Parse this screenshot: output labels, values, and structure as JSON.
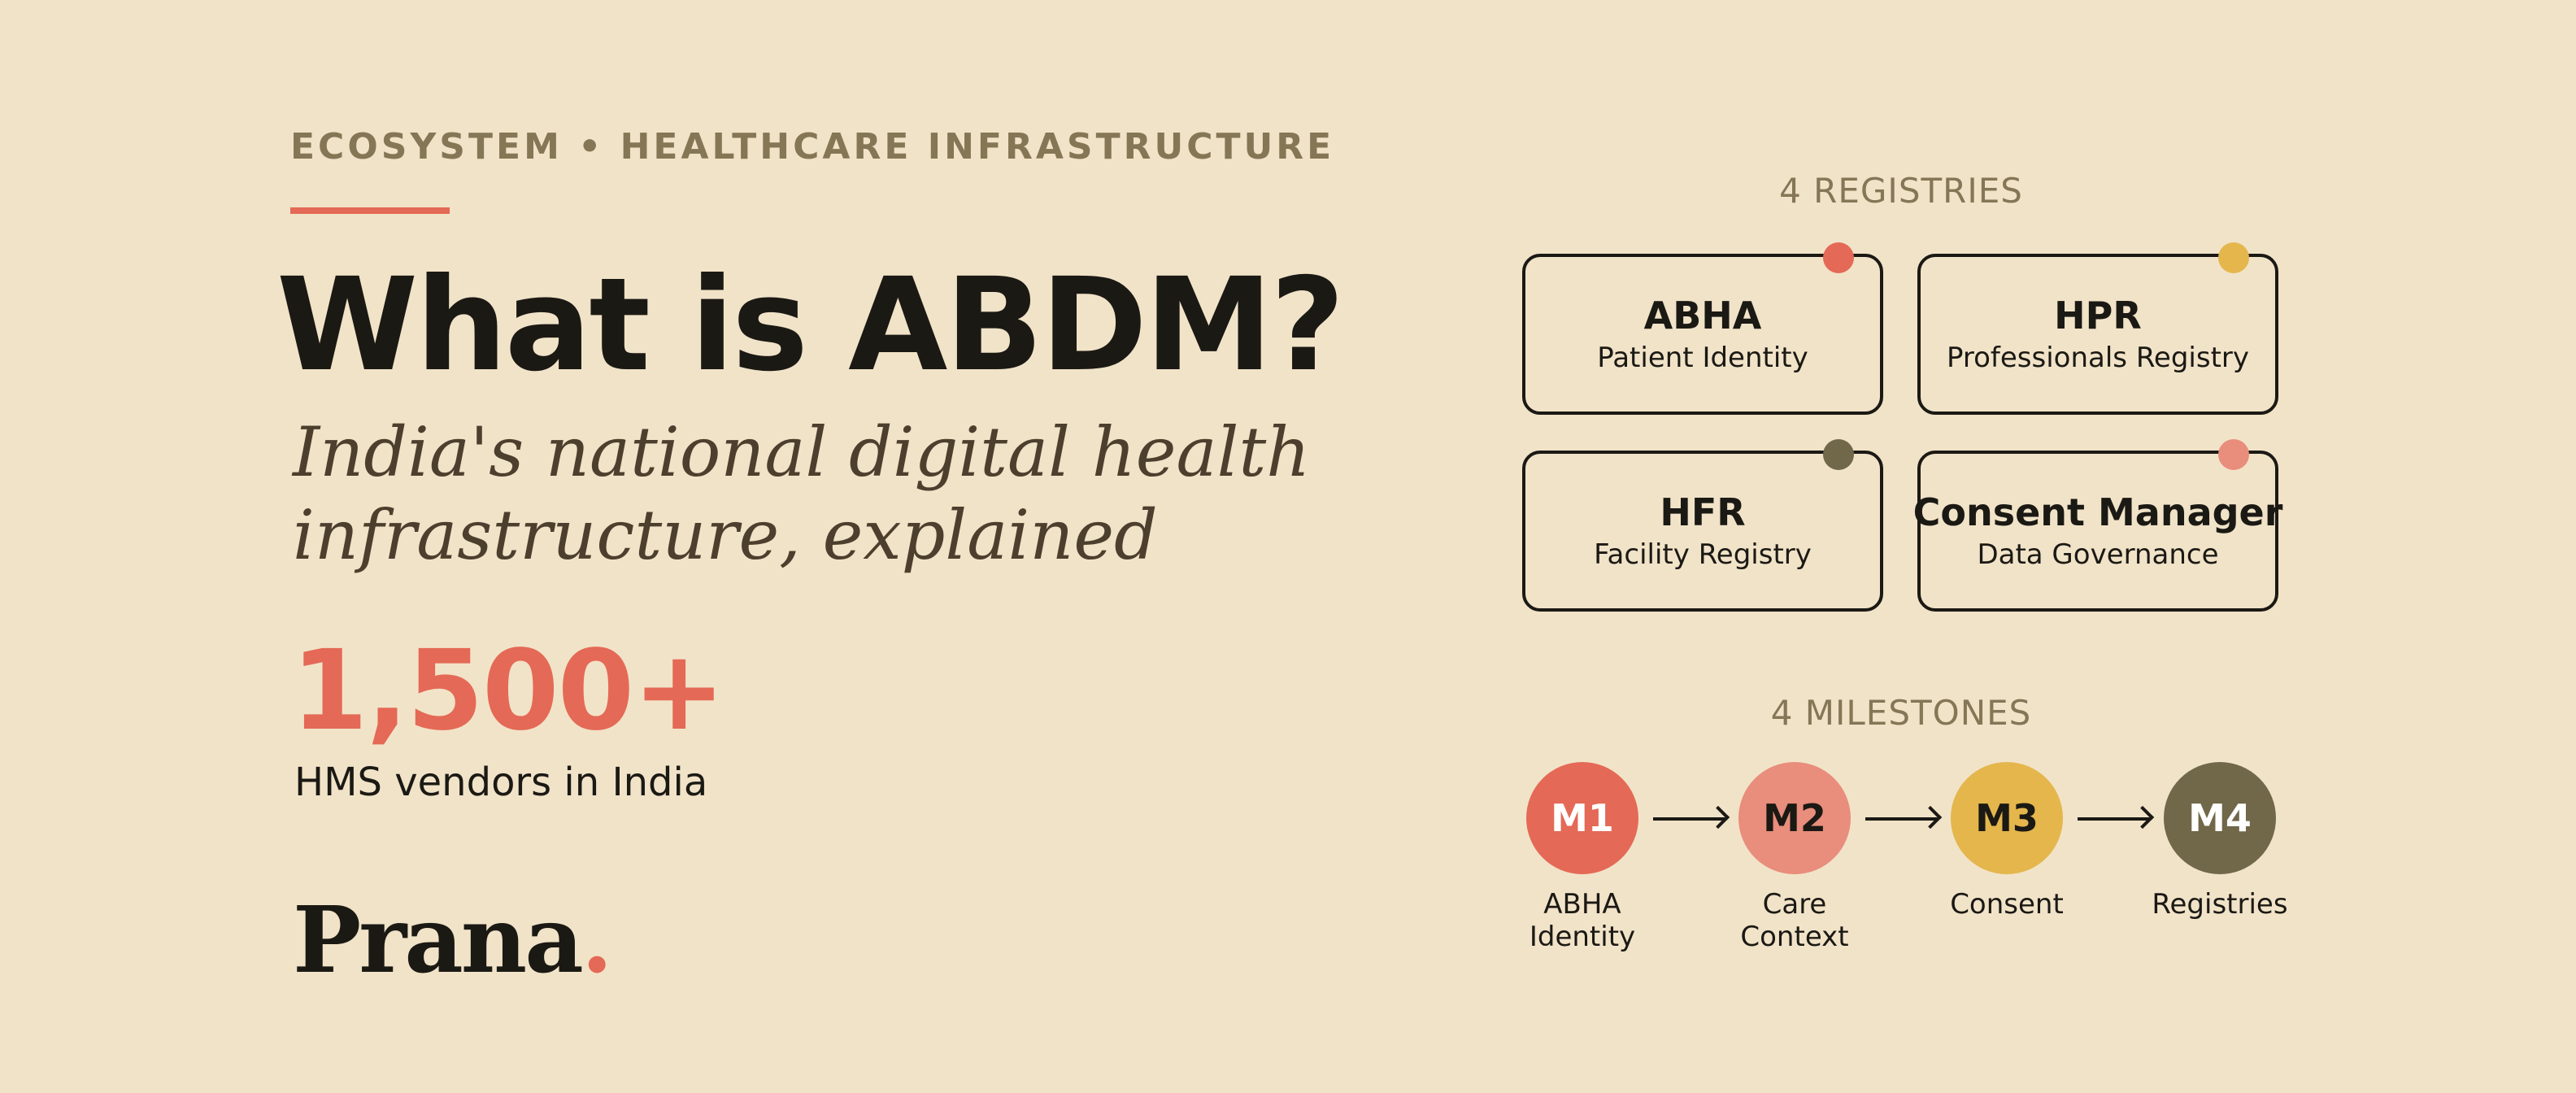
{
  "eyebrow": "ECOSYSTEM • HEALTHCARE INFRASTRUCTURE",
  "title": "What is ABDM?",
  "subtitle": {
    "line1": "India's national digital health",
    "line2": "infrastructure, explained"
  },
  "stat": {
    "value": "1,500+",
    "label": "HMS vendors in India"
  },
  "brand": {
    "name": "Prana",
    "dot": "."
  },
  "registries": {
    "heading": "4 REGISTRIES",
    "items": [
      {
        "title": "ABHA",
        "subtitle": "Patient Identity",
        "dot_color": "#E46956"
      },
      {
        "title": "HPR",
        "subtitle": "Professionals Registry",
        "dot_color": "#E4B64C"
      },
      {
        "title": "HFR",
        "subtitle": "Facility Registry",
        "dot_color": "#716749"
      },
      {
        "title": "Consent Manager",
        "subtitle": "Data Governance",
        "dot_color": "#E98D7C"
      }
    ]
  },
  "milestones": {
    "heading": "4 MILESTONES",
    "items": [
      {
        "code": "M1",
        "label_line1": "ABHA",
        "label_line2": "Identity",
        "color": "#E46956",
        "text_color": "#FFFFFF"
      },
      {
        "code": "M2",
        "label_line1": "Care",
        "label_line2": "Context",
        "color": "#E98D7C",
        "text_color": "#1B1914"
      },
      {
        "code": "M3",
        "label_line1": "Consent",
        "label_line2": "",
        "color": "#E4B64C",
        "text_color": "#1B1914"
      },
      {
        "code": "M4",
        "label_line1": "Registries",
        "label_line2": "",
        "color": "#716749",
        "text_color": "#FFFFFF"
      }
    ]
  },
  "colors": {
    "background": "#F1E3C8",
    "accent": "#E46956",
    "muted": "#857656",
    "ink": "#1B1914"
  }
}
